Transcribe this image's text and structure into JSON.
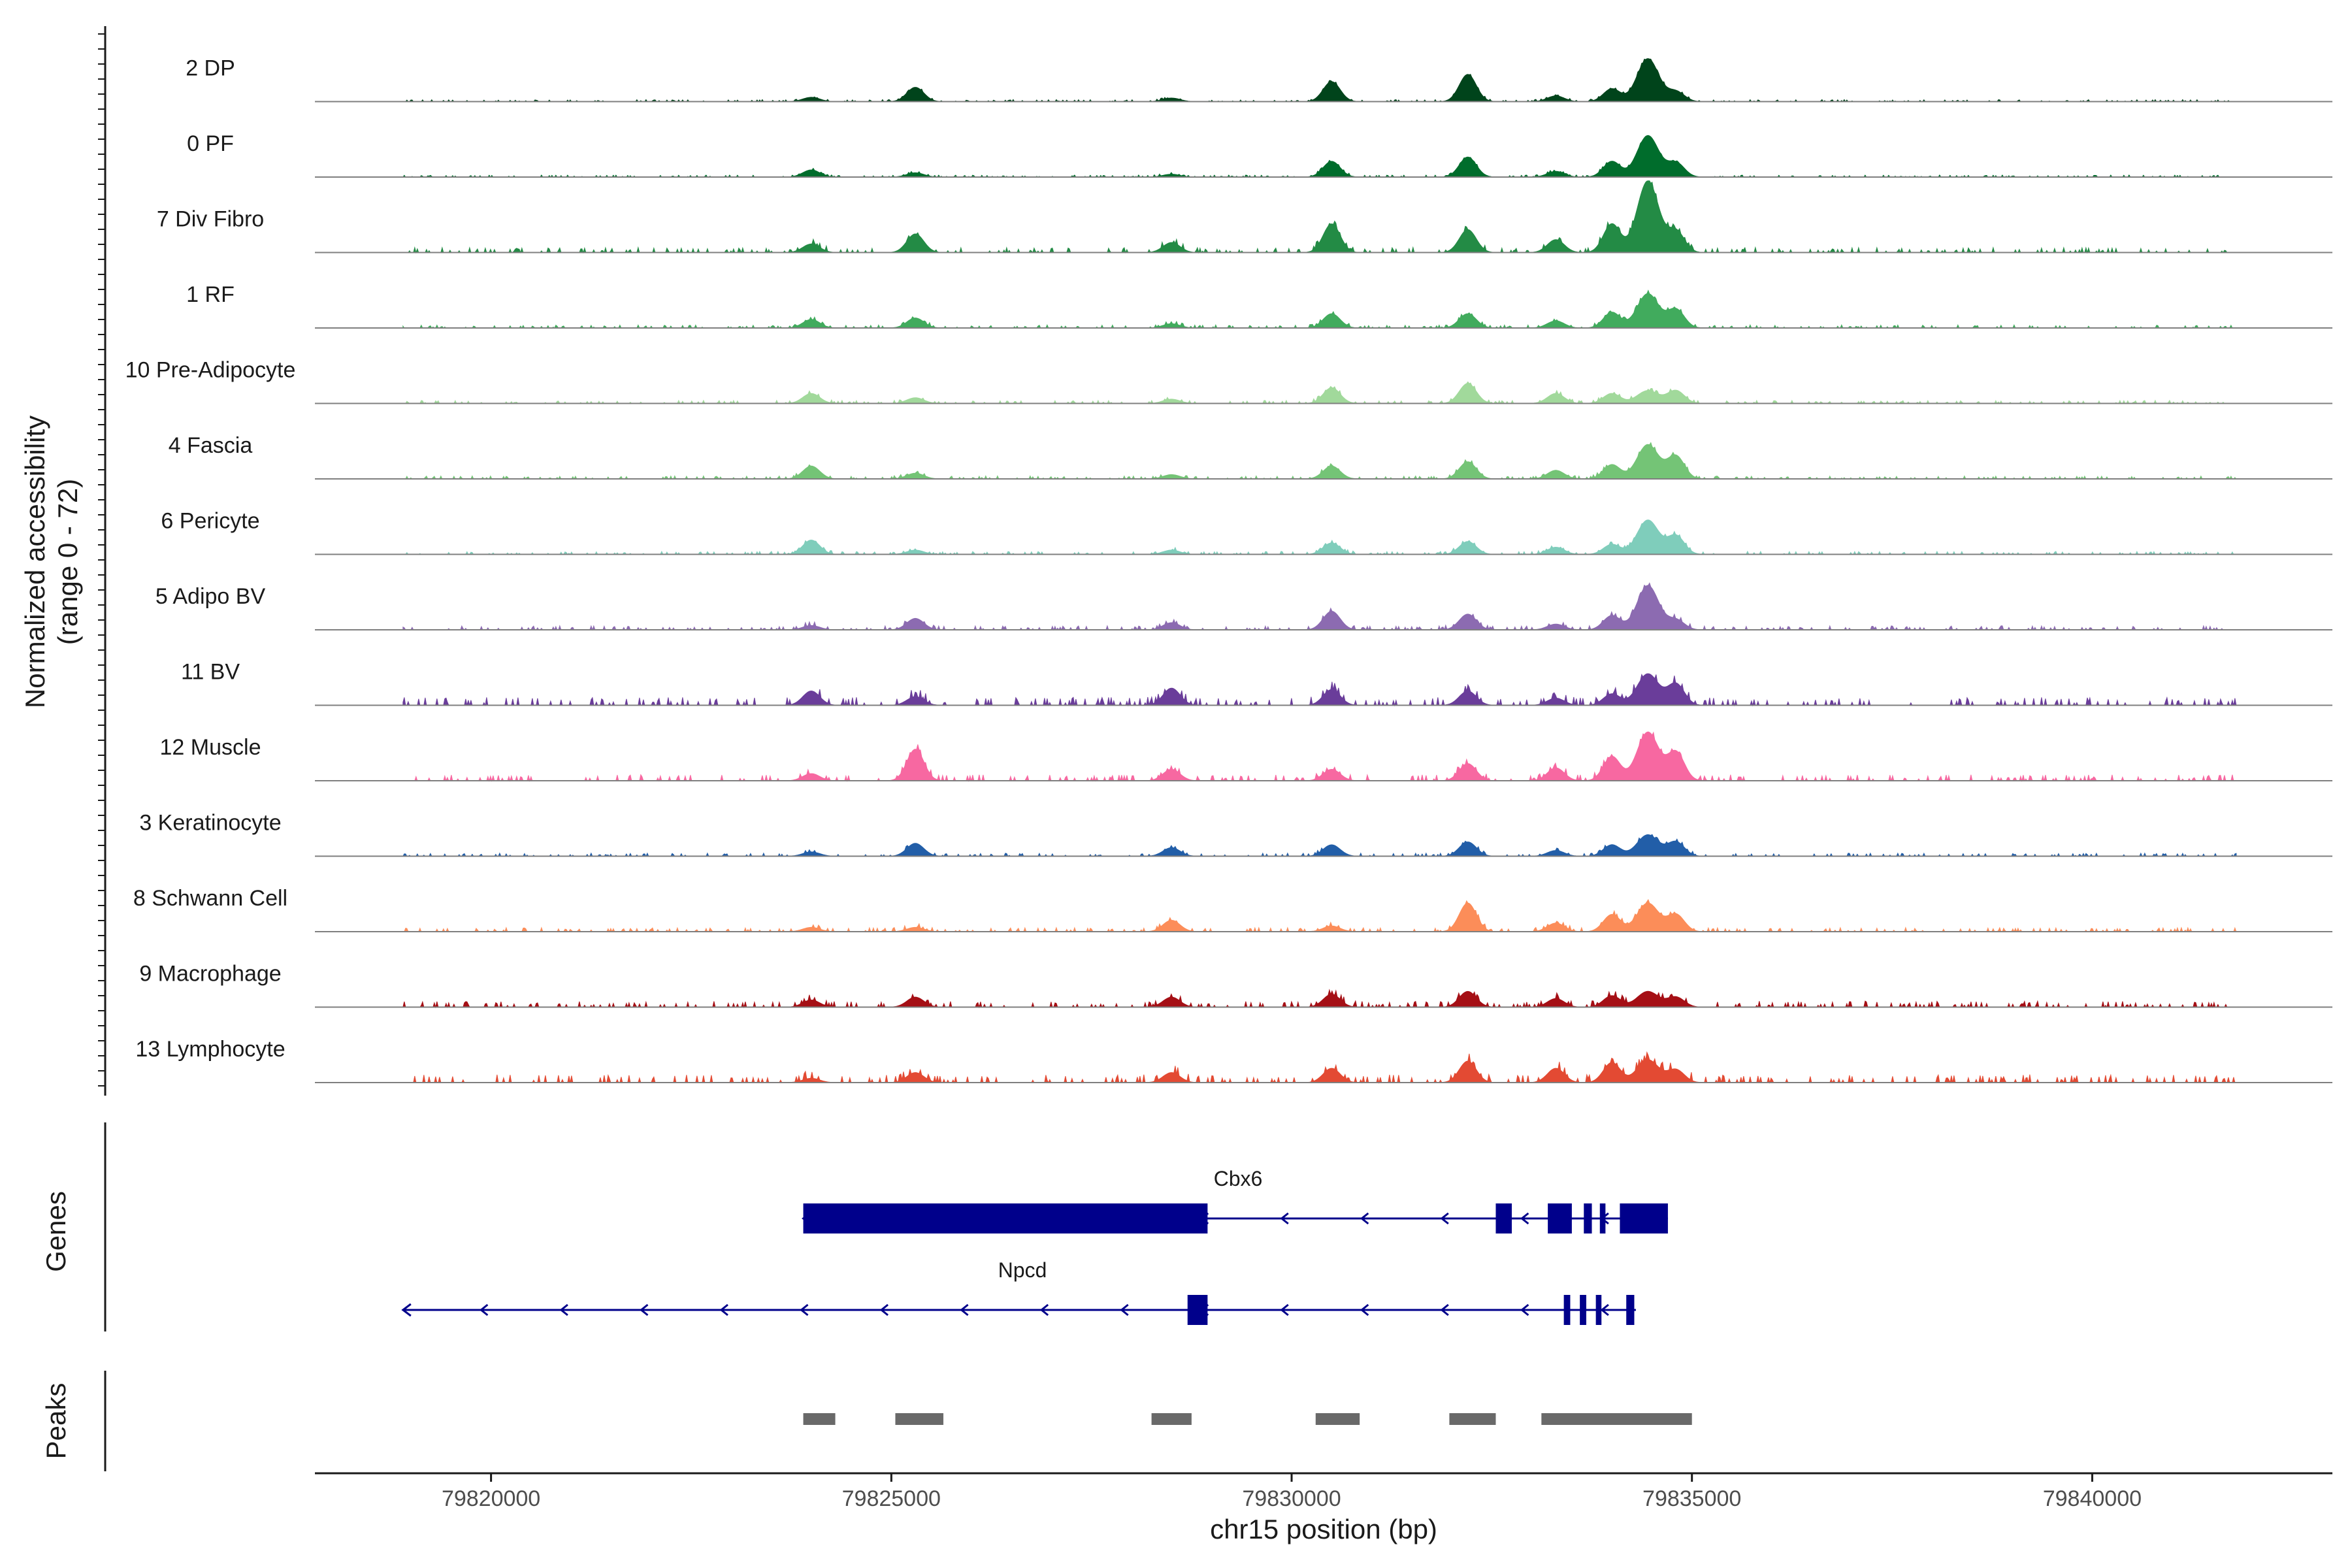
{
  "chart_data": {
    "type": "area",
    "title": "",
    "xlabel": "chr15 position (bp)",
    "ylabel": "Normalized accessibility",
    "ylabel_sub": "(range 0 - 72)",
    "xlim": [
      79817800,
      79843000
    ],
    "ylim": [
      0,
      72
    ],
    "xticks": [
      79820000,
      79825000,
      79830000,
      79835000,
      79840000
    ],
    "xtick_labels": [
      "79820000",
      "79825000",
      "79830000",
      "79835000",
      "79840000"
    ],
    "peak_centers": [
      79824000,
      79825300,
      79828500,
      79830500,
      79832200,
      79833300,
      79834000,
      79834450,
      79834800
    ],
    "tracks": [
      {
        "name": "2 DP",
        "color": "#00441b",
        "heights": [
          6,
          20,
          5,
          28,
          38,
          8,
          18,
          60,
          14
        ],
        "bg": 2
      },
      {
        "name": "0 PF",
        "color": "#006d2c",
        "heights": [
          10,
          6,
          4,
          22,
          28,
          8,
          22,
          58,
          20
        ],
        "bg": 2
      },
      {
        "name": "7 Div Fibro",
        "color": "#238b45",
        "heights": [
          12,
          26,
          14,
          40,
          32,
          18,
          40,
          100,
          30
        ],
        "bg": 5
      },
      {
        "name": "1 RF",
        "color": "#41ab5d",
        "heights": [
          12,
          14,
          6,
          20,
          20,
          10,
          22,
          48,
          26
        ],
        "bg": 3
      },
      {
        "name": "10 Pre-Adipocyte",
        "color": "#a1d99b",
        "heights": [
          14,
          8,
          6,
          22,
          28,
          14,
          14,
          18,
          18
        ],
        "bg": 3
      },
      {
        "name": "4 Fascia",
        "color": "#74c476",
        "heights": [
          18,
          8,
          6,
          18,
          24,
          12,
          20,
          48,
          32
        ],
        "bg": 3
      },
      {
        "name": "6 Pericyte",
        "color": "#7fcdbb",
        "heights": [
          20,
          6,
          6,
          16,
          18,
          10,
          14,
          48,
          26
        ],
        "bg": 3
      },
      {
        "name": "5 Adipo BV",
        "color": "#8c6bb1",
        "heights": [
          6,
          16,
          10,
          26,
          22,
          8,
          20,
          62,
          14
        ],
        "bg": 4
      },
      {
        "name": "11 BV",
        "color": "#6a3d9a",
        "heights": [
          20,
          12,
          24,
          22,
          20,
          10,
          16,
          44,
          30
        ],
        "bg": 8
      },
      {
        "name": "12 Muscle",
        "color": "#f768a1",
        "heights": [
          10,
          44,
          16,
          16,
          24,
          18,
          34,
          68,
          40
        ],
        "bg": 6
      },
      {
        "name": "3 Keratinocyte",
        "color": "#225ea8",
        "heights": [
          6,
          18,
          12,
          16,
          20,
          8,
          16,
          30,
          20
        ],
        "bg": 3
      },
      {
        "name": "8 Schwann Cell",
        "color": "#fc8d59",
        "heights": [
          6,
          6,
          16,
          8,
          40,
          12,
          24,
          40,
          24
        ],
        "bg": 4
      },
      {
        "name": "9 Macrophage",
        "color": "#a50f15",
        "heights": [
          10,
          14,
          14,
          18,
          22,
          12,
          16,
          22,
          14
        ],
        "bg": 6
      },
      {
        "name": "13 Lymphocyte",
        "color": "#e34a33",
        "heights": [
          6,
          14,
          14,
          20,
          30,
          20,
          28,
          32,
          18
        ],
        "bg": 8
      }
    ],
    "genes_label": "Genes",
    "genes": [
      {
        "name": "Cbx6",
        "start": 79823900,
        "end": 79834700,
        "strand": "-",
        "exons": [
          [
            79823900,
            79828950
          ],
          [
            79832550,
            79832750
          ],
          [
            79833200,
            79833500
          ],
          [
            79833650,
            79833750
          ],
          [
            79833850,
            79833920
          ],
          [
            79834100,
            79834700
          ]
        ]
      },
      {
        "name": "Npcd",
        "start": 79818900,
        "end": 79834300,
        "strand": "-",
        "exons": [
          [
            79828700,
            79828950
          ],
          [
            79833400,
            79833480
          ],
          [
            79833600,
            79833680
          ],
          [
            79833800,
            79833870
          ],
          [
            79834180,
            79834280
          ]
        ]
      }
    ],
    "peaks_label": "Peaks",
    "peaks": [
      [
        79823900,
        79824300
      ],
      [
        79825050,
        79825650
      ],
      [
        79828250,
        79828750
      ],
      [
        79830300,
        79830850
      ],
      [
        79831970,
        79832550
      ],
      [
        79833120,
        79835000
      ]
    ]
  }
}
